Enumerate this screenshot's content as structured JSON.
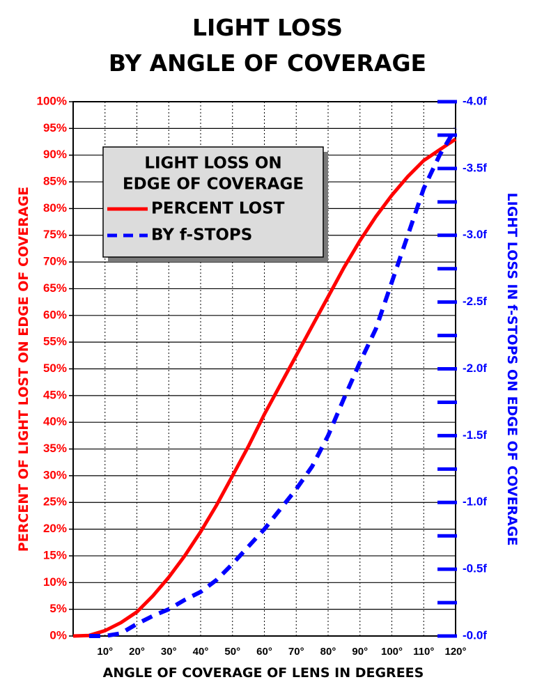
{
  "chart_data": {
    "type": "line",
    "title": "LIGHT LOSS",
    "subtitle": "BY ANGLE OF COVERAGE",
    "xlabel": "ANGLE OF COVERAGE OF LENS IN DEGREES",
    "ylabel": "PERCENT OF LIGHT LOST ON EDGE OF COVERAGE",
    "y2label": "LIGHT LOSS IN f-STOPS ON EDGE OF COVERAGE",
    "xlim": [
      0,
      120
    ],
    "ylim": [
      0,
      100
    ],
    "y2lim": [
      0,
      -4.0
    ],
    "grid": true,
    "x_ticks": [
      "10°",
      "20°",
      "30°",
      "40°",
      "50°",
      "60°",
      "70°",
      "80°",
      "90°",
      "100°",
      "110°",
      "120°"
    ],
    "y_ticks": [
      "0%",
      "5%",
      "10%",
      "15%",
      "20%",
      "25%",
      "30%",
      "35%",
      "40%",
      "45%",
      "50%",
      "55%",
      "60%",
      "65%",
      "70%",
      "75%",
      "80%",
      "85%",
      "90%",
      "95%",
      "100%"
    ],
    "y2_ticks": [
      "-0.0f",
      "-0.5f",
      "-1.0f",
      "-1.5f",
      "-2.0f",
      "-2.5f",
      "-3.0f",
      "-3.5f",
      "-4.0f"
    ],
    "legend": {
      "title_line1": "LIGHT LOSS ON",
      "title_line2": "EDGE OF COVERAGE",
      "placement": "top-left",
      "entries": [
        "PERCENT LOST",
        "BY f-STOPS"
      ]
    },
    "series": [
      {
        "name": "PERCENT LOST",
        "axis": "left",
        "color": "#ff0000",
        "style": "solid",
        "x": [
          0,
          5,
          10,
          15,
          20,
          25,
          30,
          35,
          40,
          45,
          50,
          55,
          60,
          65,
          70,
          75,
          80,
          85,
          90,
          95,
          100,
          105,
          110,
          115,
          120
        ],
        "y": [
          0,
          0.1,
          1,
          2.5,
          4.5,
          7.5,
          11,
          15,
          19.5,
          24.5,
          30,
          35.5,
          41.5,
          47,
          52.5,
          58,
          63.5,
          69,
          74,
          78.5,
          82.5,
          86,
          89,
          91,
          93
        ]
      },
      {
        "name": "BY f-STOPS",
        "axis": "right",
        "color": "#0000ff",
        "style": "dashed",
        "x": [
          5,
          10,
          15,
          20,
          25,
          30,
          35,
          40,
          45,
          50,
          55,
          60,
          65,
          70,
          75,
          80,
          85,
          90,
          95,
          100,
          105,
          110,
          115,
          120
        ],
        "y": [
          0,
          0,
          -0.02,
          -0.09,
          -0.15,
          -0.2,
          -0.27,
          -0.33,
          -0.42,
          -0.54,
          -0.67,
          -0.8,
          -0.95,
          -1.1,
          -1.27,
          -1.5,
          -1.78,
          -2.05,
          -2.3,
          -2.65,
          -3.0,
          -3.35,
          -3.6,
          -3.8
        ]
      }
    ]
  }
}
